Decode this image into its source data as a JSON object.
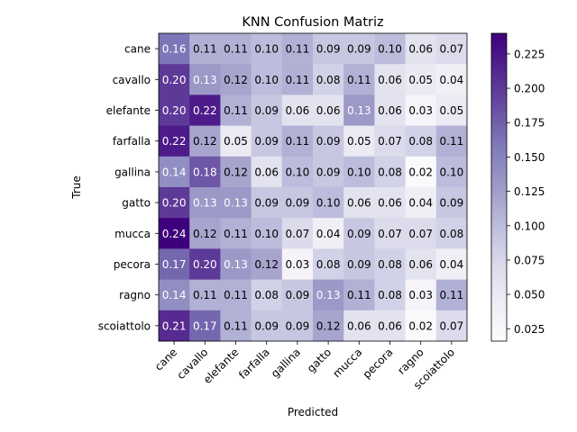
{
  "chart_data": {
    "type": "heatmap",
    "title": "KNN Confusion Matriz",
    "xlabel": "Predicted",
    "ylabel": "True",
    "x_categories": [
      "cane",
      "cavallo",
      "elefante",
      "farfalla",
      "gallina",
      "gatto",
      "mucca",
      "pecora",
      "ragno",
      "scoiattolo"
    ],
    "y_categories": [
      "cane",
      "cavallo",
      "elefante",
      "farfalla",
      "gallina",
      "gatto",
      "mucca",
      "pecora",
      "ragno",
      "scoiattolo"
    ],
    "values": [
      [
        0.16,
        0.11,
        0.11,
        0.1,
        0.11,
        0.09,
        0.09,
        0.1,
        0.06,
        0.07
      ],
      [
        0.2,
        0.13,
        0.12,
        0.1,
        0.11,
        0.08,
        0.11,
        0.06,
        0.05,
        0.04
      ],
      [
        0.2,
        0.22,
        0.11,
        0.09,
        0.06,
        0.06,
        0.13,
        0.06,
        0.03,
        0.05
      ],
      [
        0.22,
        0.12,
        0.05,
        0.09,
        0.11,
        0.09,
        0.05,
        0.07,
        0.08,
        0.11
      ],
      [
        0.14,
        0.18,
        0.12,
        0.06,
        0.1,
        0.09,
        0.1,
        0.08,
        0.02,
        0.1
      ],
      [
        0.2,
        0.13,
        0.13,
        0.09,
        0.09,
        0.1,
        0.06,
        0.06,
        0.04,
        0.09
      ],
      [
        0.24,
        0.12,
        0.11,
        0.1,
        0.07,
        0.04,
        0.09,
        0.07,
        0.07,
        0.08
      ],
      [
        0.17,
        0.2,
        0.13,
        0.12,
        0.03,
        0.08,
        0.09,
        0.08,
        0.06,
        0.04
      ],
      [
        0.14,
        0.11,
        0.11,
        0.08,
        0.09,
        0.13,
        0.11,
        0.08,
        0.03,
        0.11
      ],
      [
        0.21,
        0.17,
        0.11,
        0.09,
        0.09,
        0.12,
        0.06,
        0.06,
        0.02,
        0.07
      ]
    ],
    "colormap": "Purples",
    "vmin": 0.016,
    "vmax": 0.24,
    "colorbar_ticks": [
      "0.025",
      "0.050",
      "0.075",
      "0.100",
      "0.125",
      "0.150",
      "0.175",
      "0.200",
      "0.225"
    ],
    "colors": {
      "low": "#fcfbfd",
      "high": "#3f007d"
    }
  }
}
